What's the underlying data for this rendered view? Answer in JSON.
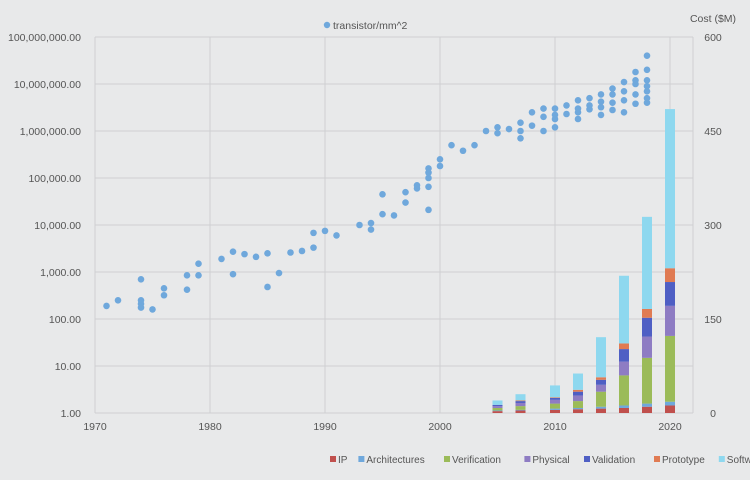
{
  "chart_data": {
    "type": "scatter+stacked-bar",
    "title": "",
    "xlabel": "",
    "x_ticks": [
      1970,
      1980,
      1990,
      2000,
      2010,
      2020
    ],
    "xlim": [
      1970,
      2022
    ],
    "left_axis": {
      "scale": "log",
      "ylim": [
        1,
        100000000
      ],
      "tick_values": [
        1,
        10,
        100,
        1000,
        10000,
        100000,
        1000000,
        10000000,
        100000000
      ],
      "tick_labels": [
        "1.00",
        "10.00",
        "100.00",
        "1,000.00",
        "10,000.00",
        "100,000.00",
        "1,000,000.00",
        "10,000,000.00",
        "100,000,000.00"
      ]
    },
    "right_axis": {
      "label": "Cost ($M)",
      "ylim": [
        0,
        600
      ],
      "tick_values": [
        0,
        150,
        300,
        450,
        600
      ],
      "tick_labels": [
        "0",
        "150",
        "300",
        "450",
        "600"
      ]
    },
    "scatter": {
      "name": "transistor/mm^2",
      "color": "#6fa8dc",
      "points": [
        [
          1971,
          190
        ],
        [
          1972,
          250
        ],
        [
          1974,
          175
        ],
        [
          1974,
          210
        ],
        [
          1974,
          250
        ],
        [
          1974,
          700
        ],
        [
          1975,
          160
        ],
        [
          1976,
          320
        ],
        [
          1976,
          450
        ],
        [
          1978,
          420
        ],
        [
          1978,
          850
        ],
        [
          1979,
          850
        ],
        [
          1979,
          1500
        ],
        [
          1981,
          1900
        ],
        [
          1982,
          900
        ],
        [
          1982,
          2700
        ],
        [
          1983,
          2400
        ],
        [
          1984,
          2100
        ],
        [
          1985,
          480
        ],
        [
          1985,
          2500
        ],
        [
          1986,
          950
        ],
        [
          1987,
          2600
        ],
        [
          1988,
          2800
        ],
        [
          1989,
          3300
        ],
        [
          1989,
          6800
        ],
        [
          1990,
          7500
        ],
        [
          1991,
          6000
        ],
        [
          1993,
          10000
        ],
        [
          1994,
          8000
        ],
        [
          1994,
          11000
        ],
        [
          1995,
          17000
        ],
        [
          1995,
          45000
        ],
        [
          1996,
          16000
        ],
        [
          1997,
          30000
        ],
        [
          1997,
          50000
        ],
        [
          1998,
          60000
        ],
        [
          1998,
          70000
        ],
        [
          1999,
          21000
        ],
        [
          1999,
          65000
        ],
        [
          1999,
          100000
        ],
        [
          1999,
          130000
        ],
        [
          1999,
          160000
        ],
        [
          2000,
          180000
        ],
        [
          2000,
          250000
        ],
        [
          2001,
          500000
        ],
        [
          2002,
          380000
        ],
        [
          2003,
          500000
        ],
        [
          2004,
          1000000
        ],
        [
          2005,
          900000
        ],
        [
          2005,
          1200000
        ],
        [
          2006,
          1100000
        ],
        [
          2007,
          700000
        ],
        [
          2007,
          1000000
        ],
        [
          2007,
          1500000
        ],
        [
          2008,
          1300000
        ],
        [
          2008,
          2500000
        ],
        [
          2009,
          1000000
        ],
        [
          2009,
          2000000
        ],
        [
          2009,
          3000000
        ],
        [
          2010,
          1200000
        ],
        [
          2010,
          1800000
        ],
        [
          2010,
          2200000
        ],
        [
          2010,
          3000000
        ],
        [
          2011,
          2300000
        ],
        [
          2011,
          3500000
        ],
        [
          2012,
          1800000
        ],
        [
          2012,
          2500000
        ],
        [
          2012,
          3000000
        ],
        [
          2012,
          4500000
        ],
        [
          2013,
          2900000
        ],
        [
          2013,
          3500000
        ],
        [
          2013,
          5000000
        ],
        [
          2014,
          2200000
        ],
        [
          2014,
          3200000
        ],
        [
          2014,
          4200000
        ],
        [
          2014,
          6000000
        ],
        [
          2015,
          2800000
        ],
        [
          2015,
          4000000
        ],
        [
          2015,
          6000000
        ],
        [
          2015,
          8000000
        ],
        [
          2016,
          2500000
        ],
        [
          2016,
          4500000
        ],
        [
          2016,
          7000000
        ],
        [
          2016,
          11000000
        ],
        [
          2017,
          3800000
        ],
        [
          2017,
          6000000
        ],
        [
          2017,
          10000000
        ],
        [
          2017,
          12000000
        ],
        [
          2017,
          18000000
        ],
        [
          2018,
          4000000
        ],
        [
          2018,
          5000000
        ],
        [
          2018,
          7000000
        ],
        [
          2018,
          9000000
        ],
        [
          2018,
          12000000
        ],
        [
          2018,
          20000000
        ],
        [
          2018,
          40000000
        ]
      ]
    },
    "bars": {
      "categories": [
        2005,
        2007,
        2010,
        2012,
        2014,
        2016,
        2018,
        2020
      ],
      "series": [
        {
          "name": "IP",
          "color": "#c0504d",
          "values": [
            3,
            4,
            5,
            6,
            7,
            8,
            10,
            12
          ]
        },
        {
          "name": "Architectures",
          "color": "#6fa8dc",
          "values": [
            1,
            1,
            2,
            2,
            3,
            4,
            5,
            6
          ]
        },
        {
          "name": "Verification",
          "color": "#9bbb59",
          "values": [
            4,
            6,
            8,
            11,
            24,
            48,
            73,
            105
          ]
        },
        {
          "name": "Physical",
          "color": "#8e7cc3",
          "values": [
            3,
            5,
            6,
            9,
            11,
            22,
            34,
            48
          ]
        },
        {
          "name": "Validation",
          "color": "#4f5fc4",
          "values": [
            2,
            3,
            3,
            6,
            8,
            20,
            30,
            38
          ]
        },
        {
          "name": "Prototype",
          "color": "#e07b53",
          "values": [
            0,
            1,
            1,
            3,
            4,
            9,
            14,
            22
          ]
        },
        {
          "name": "Software",
          "color": "#8ed8ef",
          "values": [
            7,
            10,
            19,
            26,
            64,
            108,
            147,
            254
          ]
        }
      ]
    }
  }
}
